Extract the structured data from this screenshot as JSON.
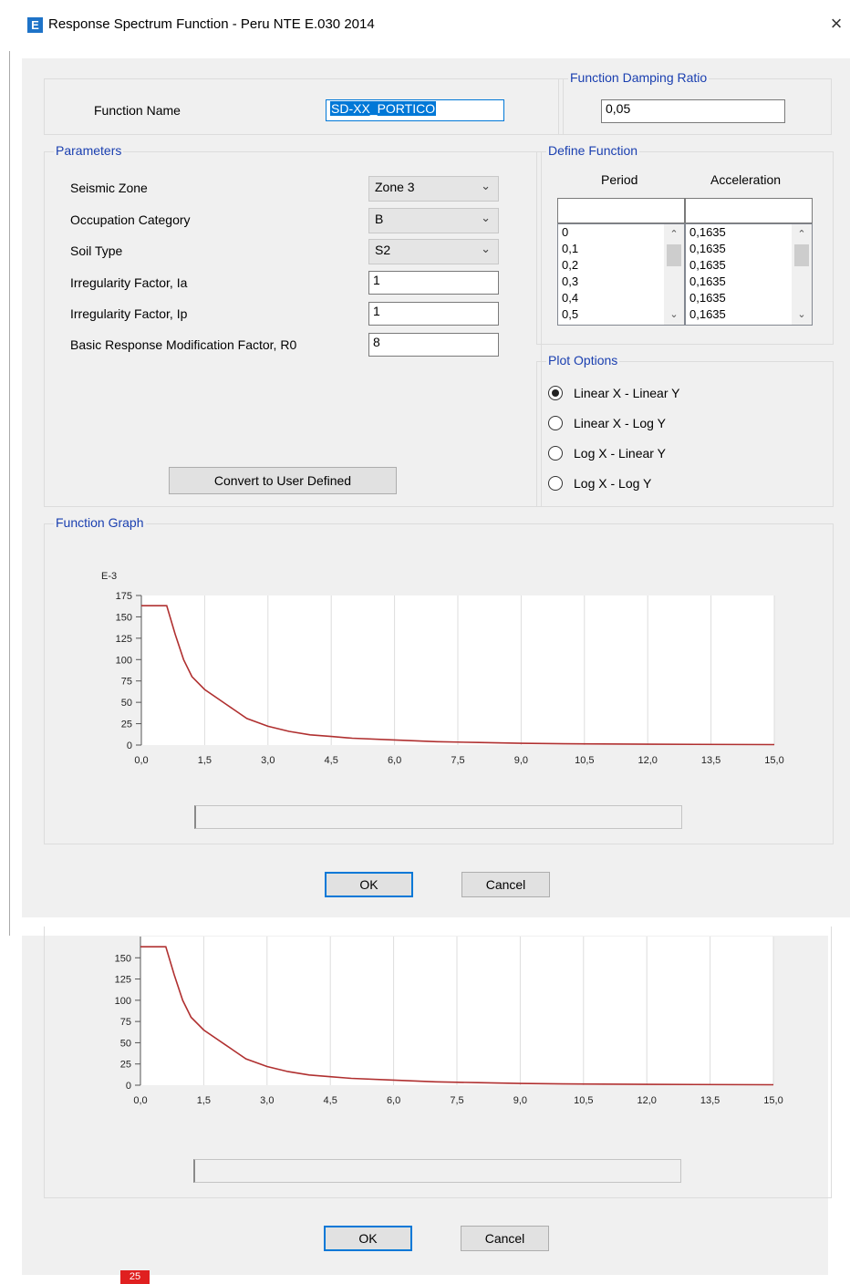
{
  "window": {
    "title": "Response Spectrum Function - Peru NTE E.030 2014",
    "app_icon": "E",
    "close_glyph": "×"
  },
  "function_name": {
    "label": "Function Name",
    "value": "SD-XX_PORTICO"
  },
  "damping": {
    "group_label": "Function Damping Ratio",
    "value": "0,05"
  },
  "parameters": {
    "group_label": "Parameters",
    "seismic_zone": {
      "label": "Seismic Zone",
      "value": "Zone 3"
    },
    "occupation_category": {
      "label": "Occupation Category",
      "value": "B"
    },
    "soil_type": {
      "label": "Soil Type",
      "value": "S2"
    },
    "irregularity_ia": {
      "label": "Irregularity Factor, Ia",
      "value": "1"
    },
    "irregularity_ip": {
      "label": "Irregularity Factor, Ip",
      "value": "1"
    },
    "r0": {
      "label": "Basic Response Modification Factor, R0",
      "value": "8"
    },
    "convert_button": "Convert to User Defined"
  },
  "define_function": {
    "group_label": "Define Function",
    "period_header": "Period",
    "accel_header": "Acceleration",
    "periods": [
      "0",
      "0,1",
      "0,2",
      "0,3",
      "0,4",
      "0,5"
    ],
    "accelerations": [
      "0,1635",
      "0,1635",
      "0,1635",
      "0,1635",
      "0,1635",
      "0,1635"
    ]
  },
  "plot_options": {
    "group_label": "Plot Options",
    "options": [
      "Linear X - Linear Y",
      "Linear X - Log Y",
      "Log X - Linear Y",
      "Log X - Log Y"
    ],
    "selected_index": 0
  },
  "graph_group_label": "Function Graph",
  "buttons": {
    "ok": "OK",
    "cancel": "Cancel"
  },
  "badge": "25",
  "chart_data": {
    "type": "line",
    "ylabel_multiplier": "E-3",
    "xlim": [
      0,
      15
    ],
    "ylim": [
      0,
      175
    ],
    "x_ticks": [
      "0,0",
      "1,5",
      "3,0",
      "4,5",
      "6,0",
      "7,5",
      "9,0",
      "10,5",
      "12,0",
      "13,5",
      "15,0"
    ],
    "y_ticks": [
      "0",
      "25",
      "50",
      "75",
      "100",
      "125",
      "150",
      "175"
    ],
    "grid": true,
    "series": [
      {
        "color": "#b03030",
        "x": [
          0,
          0.6,
          0.8,
          1.0,
          1.2,
          1.5,
          2.0,
          2.5,
          3.0,
          3.5,
          4.0,
          4.5,
          5.0,
          6.0,
          7.0,
          8.0,
          9.0,
          10.0,
          12.0,
          15.0
        ],
        "y": [
          163,
          163,
          130,
          100,
          80,
          65,
          48,
          31,
          22,
          16,
          12,
          10,
          8,
          6,
          4,
          3,
          2,
          1.5,
          1,
          0.5
        ]
      }
    ]
  }
}
